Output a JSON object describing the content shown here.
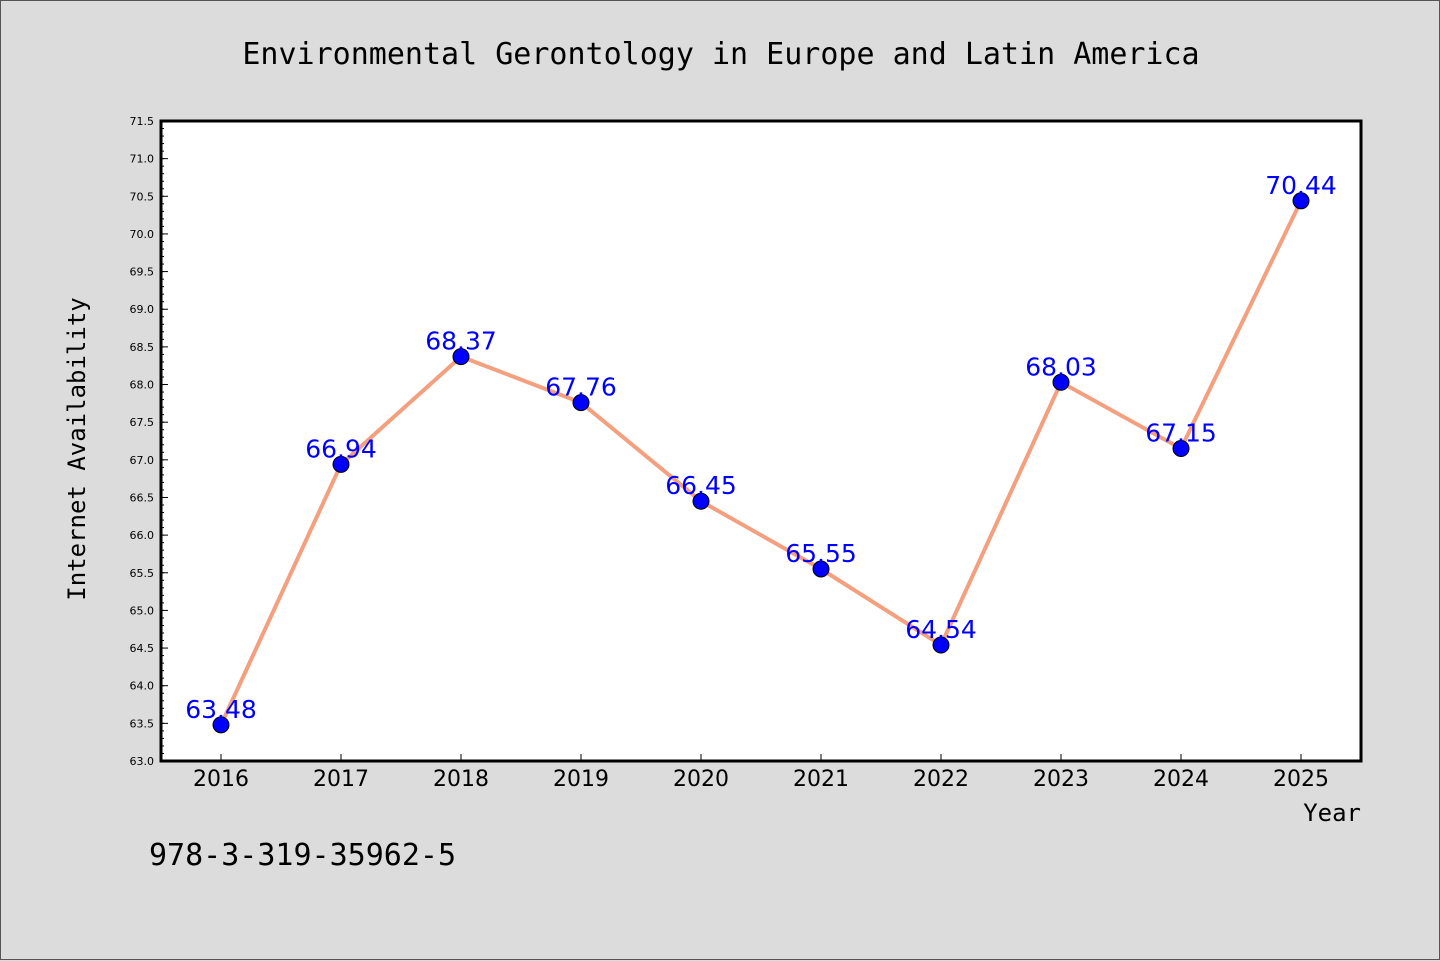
{
  "chart_data": {
    "type": "line",
    "title": "Environmental Gerontology in Europe and Latin America",
    "xlabel": "Year",
    "ylabel": "Internet Availability",
    "categories": [
      "2016",
      "2017",
      "2018",
      "2019",
      "2020",
      "2021",
      "2022",
      "2023",
      "2024",
      "2025"
    ],
    "series": [
      {
        "values": [
          63.48,
          66.94,
          68.37,
          67.76,
          66.45,
          65.55,
          64.54,
          68.03,
          67.15,
          70.44
        ],
        "line_color": "#f4a07f",
        "marker_color": "#0000ff"
      }
    ],
    "data_labels": [
      "63.48",
      "66.94",
      "68.37",
      "67.76",
      "66.45",
      "65.55",
      "64.54",
      "68.03",
      "67.15",
      "70.44"
    ],
    "ylim": [
      63.0,
      71.5
    ],
    "yticks": [
      "63.0",
      "63.5",
      "64.0",
      "64.5",
      "65.0",
      "65.5",
      "66.0",
      "66.5",
      "67.0",
      "67.5",
      "68.0",
      "68.5",
      "69.0",
      "69.5",
      "70.0",
      "70.5",
      "71.0",
      "71.5"
    ],
    "grid": false,
    "label_color": "#0000ff"
  },
  "footnote": "978-3-319-35962-5"
}
